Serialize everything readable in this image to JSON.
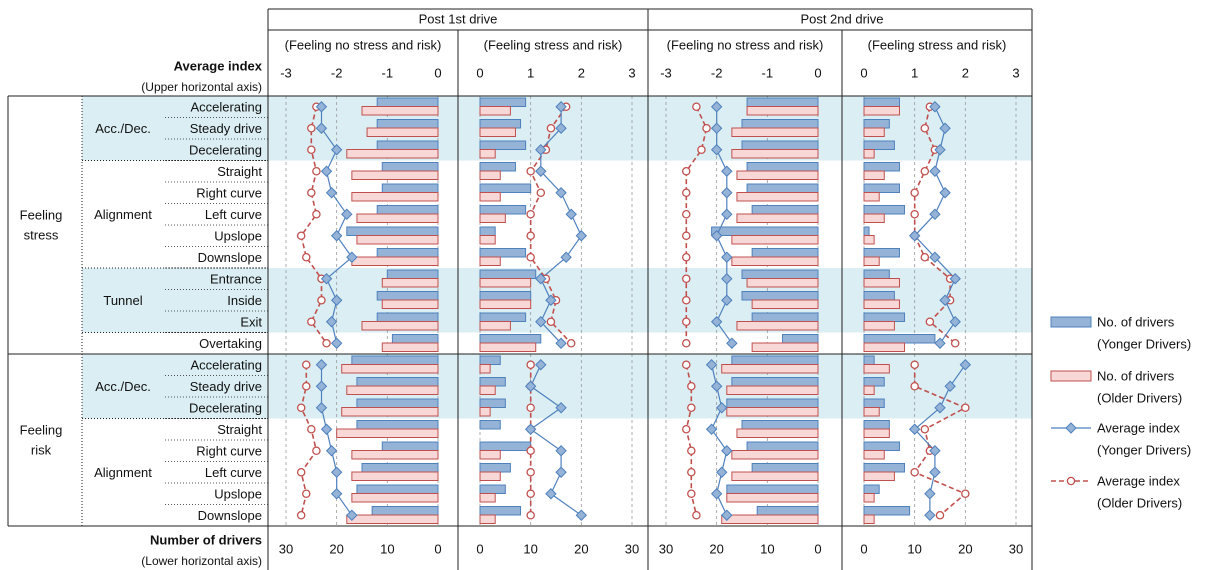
{
  "chart_data": {
    "type": "bar",
    "title": "",
    "groups": [
      "Post 1st drive",
      "Post 2nd drive"
    ],
    "subheaders": [
      "(Feeling no stress and risk)",
      "(Feeling stress and risk)"
    ],
    "upper_axis": {
      "title": "Average index",
      "subtitle": "(Upper horizontal axis)",
      "left_ticks": [
        "-3",
        "-2",
        "-1",
        "0"
      ],
      "right_ticks": [
        "0",
        "1",
        "2",
        "3"
      ],
      "range": [
        -3,
        3
      ]
    },
    "lower_axis": {
      "title": "Number of drivers",
      "subtitle": "(Lower horizontal axis)",
      "left_ticks": [
        "30",
        "20",
        "10",
        "0"
      ],
      "right_ticks": [
        "0",
        "10",
        "20",
        "30"
      ],
      "range": [
        0,
        30
      ]
    },
    "row_groups": [
      {
        "label": [
          "Feeling",
          "stress"
        ],
        "subgroups": [
          {
            "label": "Acc./Dec.",
            "shaded": true,
            "rows": [
              "Accelerating",
              "Steady drive",
              "Decelerating"
            ]
          },
          {
            "label": "Alignment",
            "shaded": false,
            "rows": [
              "Straight",
              "Right curve",
              "Left curve",
              "Upslope",
              "Downslope"
            ]
          },
          {
            "label": "Tunnel",
            "shaded": true,
            "rows": [
              "Entrance",
              "Inside",
              "Exit"
            ]
          },
          {
            "label": "",
            "shaded": false,
            "rows": [
              "Overtaking"
            ]
          }
        ]
      },
      {
        "label": [
          "Feeling",
          "risk"
        ],
        "subgroups": [
          {
            "label": "Acc./Dec.",
            "shaded": true,
            "rows": [
              "Accelerating",
              "Steady drive",
              "Decelerating"
            ]
          },
          {
            "label": "Alignment",
            "shaded": false,
            "rows": [
              "Straight",
              "Right curve",
              "Left curve",
              "Upslope",
              "Downslope"
            ]
          }
        ]
      }
    ],
    "legend": {
      "position": "right",
      "items": [
        {
          "kind": "bar",
          "lines": [
            "No. of drivers",
            "(Yonger Drivers)"
          ]
        },
        {
          "kind": "bar",
          "lines": [
            "No. of drivers",
            "(Older Drivers)"
          ]
        },
        {
          "kind": "line",
          "lines": [
            "Average index",
            "(Yonger Drivers)"
          ]
        },
        {
          "kind": "line",
          "lines": [
            "Average index",
            "(Older Drivers)"
          ]
        }
      ]
    },
    "colors": {
      "young_bar_fill": "#95B3D7",
      "young_bar_stroke": "#4F81BD",
      "old_bar_fill": "#F8D7D7",
      "old_bar_stroke": "#C0504D",
      "young_line": "#4F81BD",
      "old_line": "#C0504D",
      "band": "#DAEEF3"
    },
    "series": {
      "post1": {
        "neg_young_n": [
          12,
          12,
          12,
          11,
          11,
          12,
          18,
          12,
          10,
          12,
          12,
          9,
          17,
          16,
          16,
          16,
          11,
          15,
          16,
          13
        ],
        "neg_old_n": [
          15,
          14,
          18,
          17,
          17,
          16,
          16,
          17,
          11,
          11,
          15,
          11,
          19,
          18,
          19,
          20,
          17,
          17,
          17,
          18
        ],
        "pos_young_n": [
          9,
          8,
          9,
          7,
          10,
          9,
          3,
          9,
          11,
          10,
          9,
          12,
          4,
          5,
          5,
          4,
          10,
          6,
          5,
          8
        ],
        "pos_old_n": [
          6,
          7,
          3,
          4,
          4,
          5,
          3,
          4,
          10,
          10,
          6,
          11,
          2,
          3,
          2,
          0,
          4,
          4,
          3,
          3
        ],
        "neg_young_idx": [
          -2.3,
          -2.3,
          -2.0,
          -2.2,
          -2.1,
          -1.8,
          -2.0,
          -1.7,
          -2.2,
          -2.0,
          -2.1,
          -2.0,
          -2.3,
          -2.3,
          -2.3,
          -2.2,
          -2.1,
          -2.0,
          -2.0,
          -1.7
        ],
        "neg_old_idx": [
          -2.4,
          -2.5,
          -2.5,
          -2.4,
          -2.5,
          -2.4,
          -2.7,
          -2.6,
          -2.3,
          -2.3,
          -2.5,
          -2.2,
          -2.6,
          -2.6,
          -2.7,
          -2.5,
          -2.4,
          -2.7,
          -2.6,
          -2.7
        ],
        "pos_young_idx": [
          1.6,
          1.6,
          1.2,
          1.2,
          1.6,
          1.8,
          2.0,
          1.7,
          1.2,
          1.4,
          1.2,
          1.6,
          1.2,
          1.0,
          1.6,
          1.0,
          1.6,
          1.6,
          1.4,
          2.0
        ],
        "pos_old_idx": [
          1.7,
          1.4,
          1.3,
          1.0,
          1.2,
          1.0,
          1.0,
          1.0,
          1.3,
          1.5,
          1.4,
          1.8,
          1.0,
          1.0,
          1.0,
          1.0,
          1.0,
          1.0,
          1.0,
          1.0
        ]
      },
      "post2": {
        "neg_young_n": [
          14,
          15,
          15,
          14,
          14,
          13,
          21,
          13,
          15,
          15,
          13,
          7,
          17,
          17,
          18,
          15,
          14,
          13,
          18,
          12
        ],
        "neg_old_n": [
          14,
          17,
          17,
          16,
          16,
          16,
          17,
          17,
          14,
          13,
          16,
          13,
          19,
          18,
          18,
          16,
          17,
          17,
          18,
          19
        ],
        "pos_young_n": [
          7,
          5,
          6,
          7,
          7,
          8,
          1,
          7,
          5,
          6,
          8,
          14,
          2,
          4,
          4,
          5,
          7,
          8,
          3,
          9
        ],
        "pos_old_n": [
          7,
          4,
          2,
          4,
          3,
          4,
          2,
          3,
          7,
          7,
          6,
          8,
          5,
          2,
          3,
          5,
          4,
          6,
          2,
          2
        ],
        "neg_young_idx": [
          -2.0,
          -2.0,
          -2.0,
          -1.8,
          -1.8,
          -1.8,
          -2.0,
          -1.8,
          -1.8,
          -1.8,
          -2.0,
          -1.7,
          -2.1,
          -2.0,
          -1.9,
          -2.1,
          -1.8,
          -1.9,
          -2.0,
          -1.8
        ],
        "neg_old_idx": [
          -2.4,
          -2.2,
          -2.3,
          -2.6,
          -2.6,
          -2.6,
          -2.6,
          -2.6,
          -2.6,
          -2.6,
          -2.6,
          -2.6,
          -2.6,
          -2.5,
          -2.5,
          -2.6,
          -2.5,
          -2.5,
          -2.5,
          -2.4
        ],
        "pos_young_idx": [
          1.4,
          1.6,
          1.5,
          1.4,
          1.6,
          1.4,
          1.0,
          1.4,
          1.8,
          1.6,
          1.8,
          1.5,
          2.0,
          1.7,
          1.5,
          1.0,
          1.4,
          1.4,
          1.3,
          1.3
        ],
        "pos_old_idx": [
          1.3,
          1.2,
          1.4,
          1.2,
          1.0,
          1.0,
          1.0,
          1.2,
          1.7,
          1.7,
          1.3,
          1.8,
          1.0,
          1.0,
          2.0,
          1.2,
          1.3,
          1.0,
          2.0,
          1.5
        ]
      }
    }
  }
}
